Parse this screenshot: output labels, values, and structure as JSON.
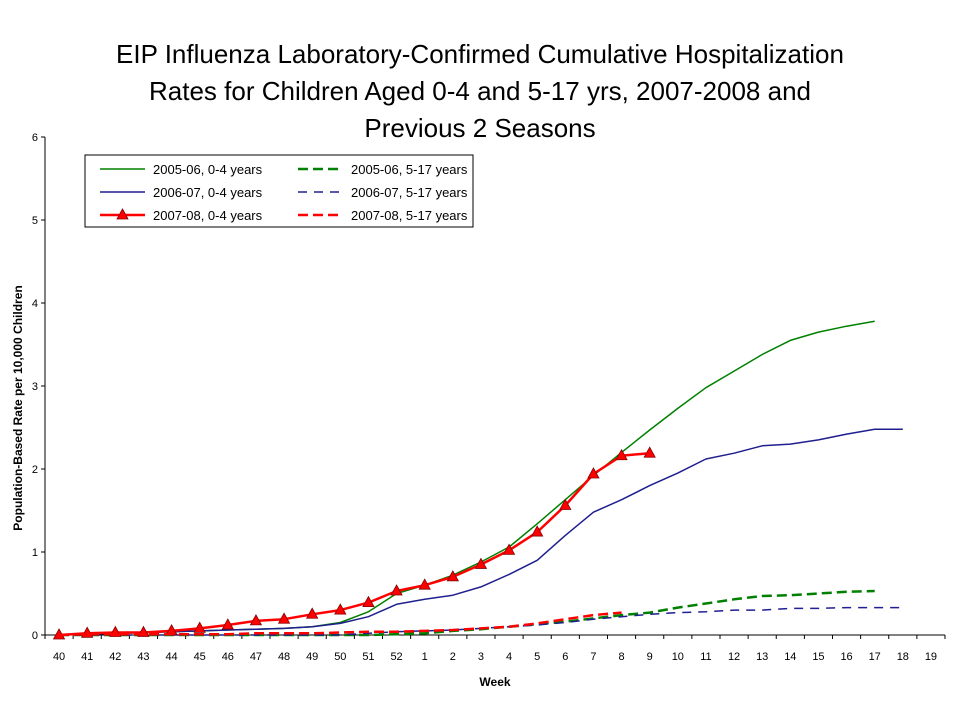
{
  "chart_data": {
    "type": "line",
    "title_lines": [
      "EIP Influenza Laboratory-Confirmed Cumulative Hospitalization",
      "Rates for Children Aged 0-4 and 5-17 yrs, 2007-2008 and",
      "Previous 2 Seasons"
    ],
    "xlabel": "Week",
    "ylabel": "Population-Based Rate per 10,000 Children",
    "ylim": [
      0,
      6
    ],
    "yticks": [
      "0",
      "1",
      "2",
      "3",
      "4",
      "5",
      "6"
    ],
    "categories": [
      "40",
      "41",
      "42",
      "43",
      "44",
      "45",
      "46",
      "47",
      "48",
      "49",
      "50",
      "51",
      "52",
      "1",
      "2",
      "3",
      "4",
      "5",
      "6",
      "7",
      "8",
      "9",
      "10",
      "11",
      "12",
      "13",
      "14",
      "15",
      "16",
      "17",
      "18",
      "19"
    ],
    "grid": false,
    "legend_position": "top-left",
    "series": [
      {
        "name": "2005-06, 0-4 years",
        "color": "#008000",
        "style": "solid",
        "marker": "none",
        "values": [
          0.0,
          0.01,
          0.02,
          0.03,
          0.04,
          0.05,
          0.06,
          0.07,
          0.08,
          0.1,
          0.15,
          0.28,
          0.5,
          0.6,
          0.72,
          0.88,
          1.06,
          1.34,
          1.63,
          1.92,
          2.2,
          2.47,
          2.73,
          2.98,
          3.18,
          3.38,
          3.55,
          3.65,
          3.72,
          3.78,
          null,
          null
        ]
      },
      {
        "name": "2005-06, 5-17 years",
        "color": "#008000",
        "style": "dashed",
        "marker": "none",
        "values": [
          0.0,
          0.0,
          0.0,
          0.0,
          0.0,
          0.0,
          0.0,
          0.0,
          0.0,
          0.0,
          0.0,
          0.0,
          0.01,
          0.02,
          0.05,
          0.07,
          0.1,
          0.13,
          0.16,
          0.2,
          0.24,
          0.27,
          0.33,
          0.38,
          0.43,
          0.47,
          0.48,
          0.5,
          0.52,
          0.53,
          null,
          null
        ]
      },
      {
        "name": "2006-07, 0-4 years",
        "color": "#1F1F8F",
        "style": "solid",
        "marker": "none",
        "values": [
          0.0,
          0.01,
          0.02,
          0.03,
          0.04,
          0.05,
          0.06,
          0.07,
          0.08,
          0.1,
          0.14,
          0.22,
          0.37,
          0.43,
          0.48,
          0.58,
          0.73,
          0.9,
          1.2,
          1.48,
          1.63,
          1.8,
          1.95,
          2.12,
          2.19,
          2.28,
          2.3,
          2.35,
          2.42,
          2.48,
          2.48,
          null
        ]
      },
      {
        "name": "2006-07, 5-17 years",
        "color": "#1F1F8F",
        "style": "dashed",
        "marker": "none",
        "values": [
          0.0,
          0.0,
          0.0,
          0.0,
          0.0,
          0.0,
          0.0,
          0.0,
          0.0,
          0.0,
          0.0,
          0.02,
          0.04,
          0.05,
          0.06,
          0.08,
          0.1,
          0.12,
          0.15,
          0.19,
          0.22,
          0.25,
          0.27,
          0.28,
          0.3,
          0.3,
          0.32,
          0.32,
          0.33,
          0.33,
          0.33,
          null
        ]
      },
      {
        "name": "2007-08, 0-4 years",
        "color": "#FF0000",
        "style": "solid",
        "marker": "triangle",
        "values": [
          0.0,
          0.02,
          0.03,
          0.03,
          0.05,
          0.08,
          0.12,
          0.17,
          0.19,
          0.25,
          0.3,
          0.39,
          0.53,
          0.6,
          0.7,
          0.85,
          1.02,
          1.24,
          1.56,
          1.94,
          2.16,
          2.19,
          null,
          null,
          null,
          null,
          null,
          null,
          null,
          null,
          null,
          null
        ]
      },
      {
        "name": "2007-08, 5-17 years",
        "color": "#FF0000",
        "style": "dashed",
        "marker": "none",
        "values": [
          0.0,
          0.01,
          0.01,
          0.01,
          0.01,
          0.01,
          0.01,
          0.02,
          0.02,
          0.02,
          0.03,
          0.04,
          0.04,
          0.05,
          0.06,
          0.08,
          0.1,
          0.14,
          0.19,
          0.24,
          0.27,
          null,
          null,
          null,
          null,
          null,
          null,
          null,
          null,
          null,
          null,
          null
        ]
      }
    ]
  }
}
